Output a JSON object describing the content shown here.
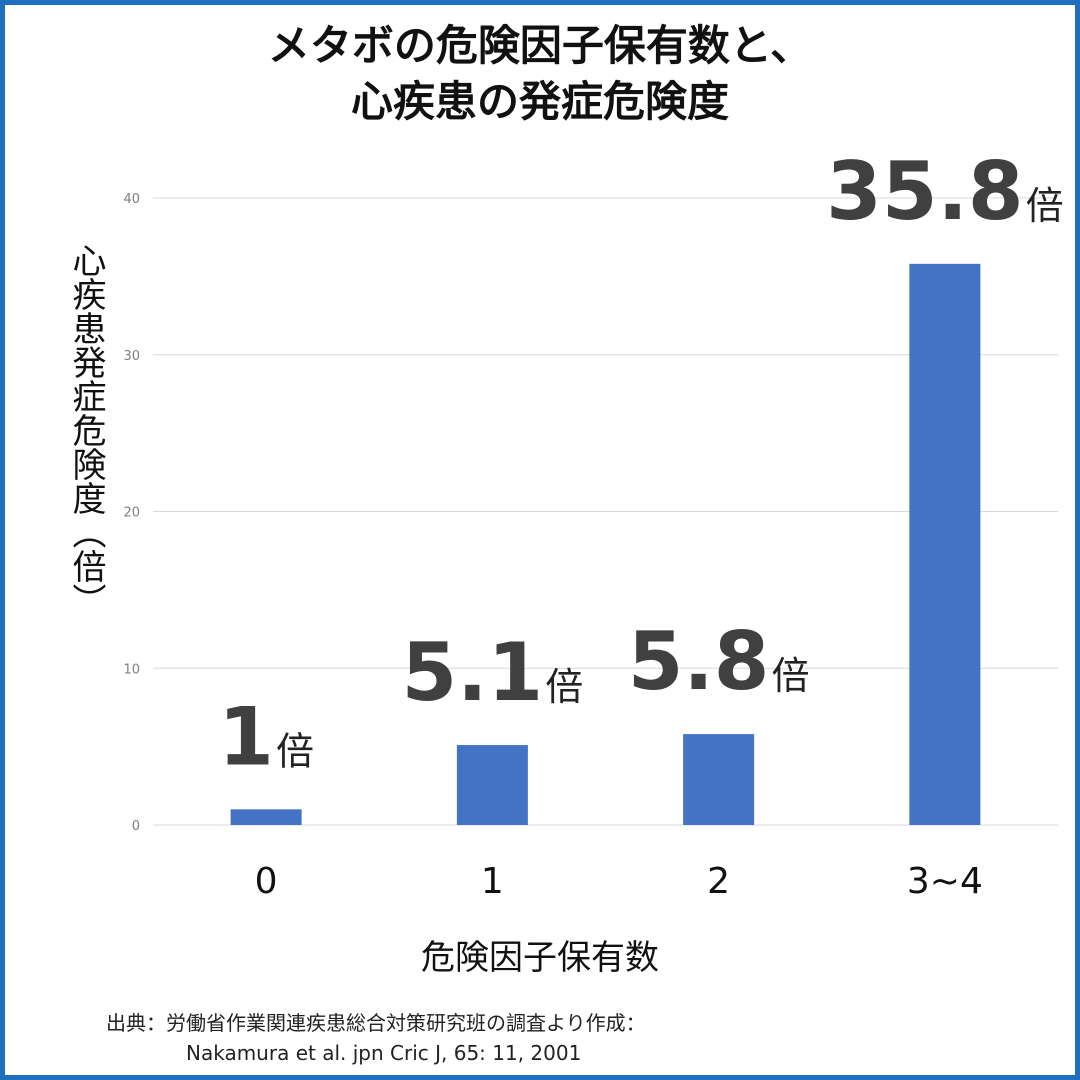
{
  "title_lines": [
    "メタボの危険因子保有数と、",
    "心疾患の発症危険度"
  ],
  "source": {
    "line1": "出典：労働省作業関連疾患総合対策研究班の調査より作成：",
    "line2": "Nakamura et al. jpn Cric J, 65: 11, 2001"
  },
  "colors": {
    "bar": "#4472c4",
    "frame": "#1f6fbf",
    "grid": "#d9d9d9",
    "label": "#404040"
  },
  "chart_data": {
    "type": "bar",
    "title": "メタボの危険因子保有数と、心疾患の発症危険度",
    "xlabel": "危険因子保有数",
    "ylabel": "心疾患発症危険度（倍）",
    "categories": [
      "0",
      "1",
      "2",
      "3~4"
    ],
    "values": [
      1,
      5.1,
      5.8,
      35.8
    ],
    "data_labels": [
      {
        "number": "1",
        "unit": "倍"
      },
      {
        "number": "5.1",
        "unit": "倍"
      },
      {
        "number": "5.8",
        "unit": "倍"
      },
      {
        "number": "35.8",
        "unit": "倍"
      }
    ],
    "yticks": [
      "0",
      "10",
      "20",
      "30",
      "40"
    ],
    "ylim": [
      0,
      40
    ],
    "grid": true,
    "legend": "none"
  }
}
